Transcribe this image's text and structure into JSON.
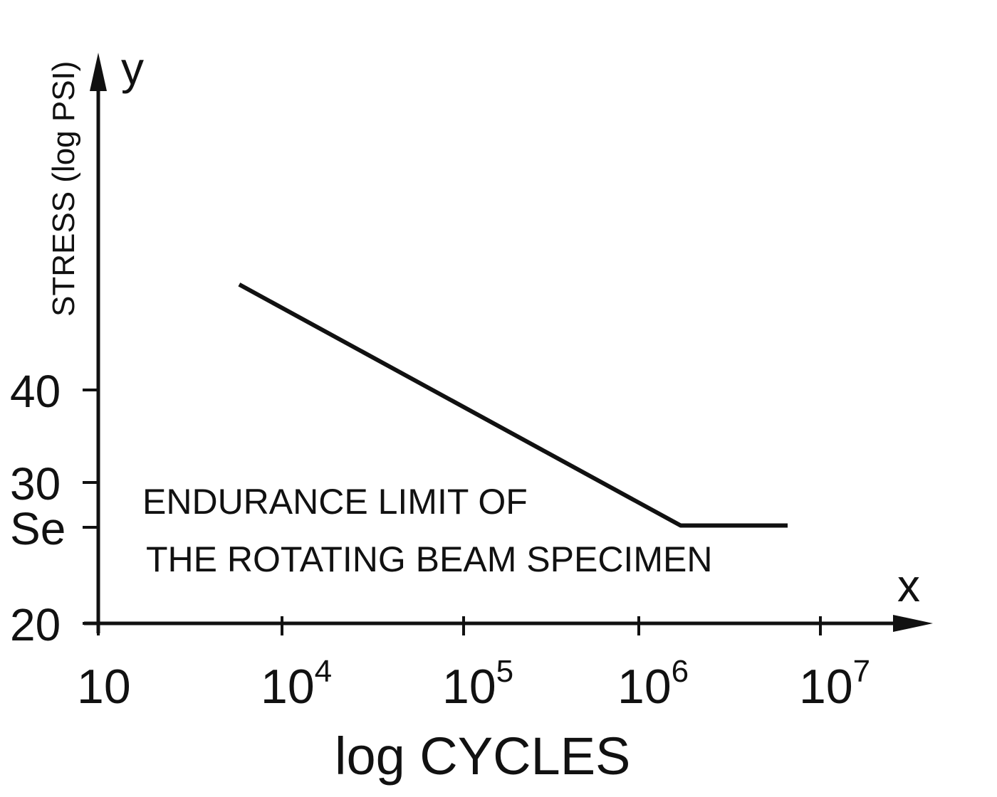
{
  "chart_data": {
    "type": "line",
    "x_scale": "log",
    "xlabel": "log CYCLES",
    "ylabel": "STRESS (log PSI)",
    "x_axis_letter": "x",
    "y_axis_letter": "y",
    "x_ticks": [
      {
        "value": 10,
        "base": "10",
        "exp": ""
      },
      {
        "value": 10000,
        "base": "10",
        "exp": "4"
      },
      {
        "value": 100000,
        "base": "10",
        "exp": "5"
      },
      {
        "value": 1000000,
        "base": "10",
        "exp": "6"
      },
      {
        "value": 10000000,
        "base": "10",
        "exp": "7"
      }
    ],
    "y_ticks": [
      {
        "value": 20,
        "label": "20"
      },
      {
        "value": 25,
        "label": "Se"
      },
      {
        "value": 30,
        "label": "30"
      },
      {
        "value": 40,
        "label": "40"
      }
    ],
    "series": [
      {
        "points": [
          {
            "x": 2000,
            "y": 51.4
          },
          {
            "x": 1700000,
            "y": 25.2
          },
          {
            "x": 6600000,
            "y": 25.2
          }
        ]
      }
    ],
    "annotation": {
      "line1": "ENDURANCE LIMIT OF",
      "line2": "THE ROTATING BEAM SPECIMEN"
    },
    "grid": false,
    "legend": "none"
  }
}
